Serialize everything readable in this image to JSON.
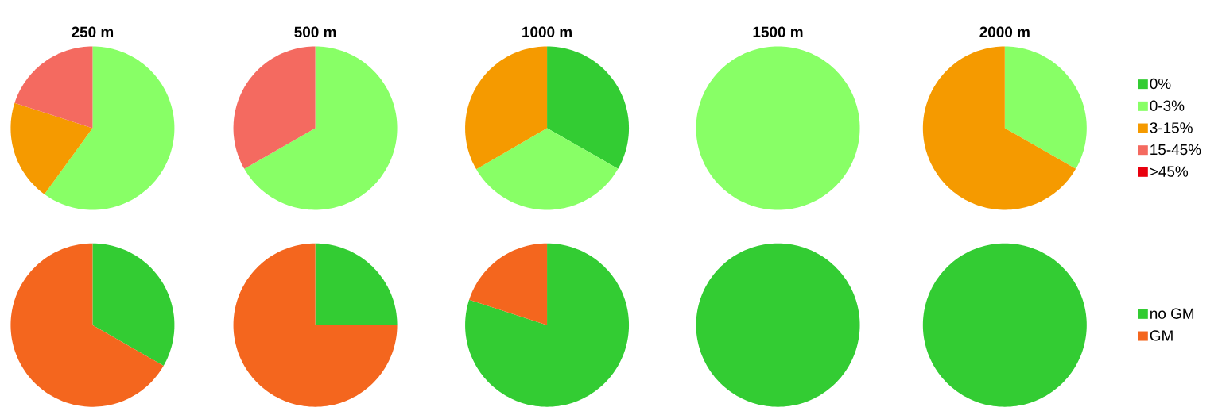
{
  "chart_data": [
    {
      "type": "pie",
      "title": "250 m",
      "values": [
        0,
        60,
        20,
        20,
        0
      ],
      "colors": [
        "#33cc33",
        "#88ff66",
        "#f59a00",
        "#f46a60",
        "#e8000e"
      ]
    },
    {
      "type": "pie",
      "title": "500 m",
      "values": [
        0,
        66.7,
        0,
        33.3,
        0
      ],
      "colors": [
        "#33cc33",
        "#88ff66",
        "#f59a00",
        "#f46a60",
        "#e8000e"
      ]
    },
    {
      "type": "pie",
      "title": "1000 m",
      "values": [
        33.3,
        33.3,
        33.4,
        0,
        0
      ],
      "colors": [
        "#33cc33",
        "#88ff66",
        "#f59a00",
        "#f46a60",
        "#e8000e"
      ]
    },
    {
      "type": "pie",
      "title": "1500 m",
      "values": [
        0,
        100,
        0,
        0,
        0
      ],
      "colors": [
        "#33cc33",
        "#88ff66",
        "#f59a00",
        "#f46a60",
        "#e8000e"
      ]
    },
    {
      "type": "pie",
      "title": "2000 m",
      "categories": [
        "0%",
        "0-3%",
        "3-15%",
        "15-45%",
        ">45%"
      ],
      "values": [
        0,
        33.3,
        66.7,
        0,
        0
      ],
      "colors": [
        "#33cc33",
        "#88ff66",
        "#f59a00",
        "#f46a60",
        "#e8000e"
      ],
      "legend": "right"
    },
    {
      "type": "pie",
      "values": [
        33.3,
        66.7
      ],
      "colors": [
        "#33cc33",
        "#f4661e"
      ]
    },
    {
      "type": "pie",
      "values": [
        25,
        75
      ],
      "colors": [
        "#33cc33",
        "#f4661e"
      ]
    },
    {
      "type": "pie",
      "values": [
        80,
        20
      ],
      "colors": [
        "#33cc33",
        "#f4661e"
      ]
    },
    {
      "type": "pie",
      "values": [
        100,
        0
      ],
      "colors": [
        "#33cc33",
        "#f4661e"
      ]
    },
    {
      "type": "pie",
      "categories": [
        "no GM",
        "GM"
      ],
      "values": [
        100,
        0
      ],
      "colors": [
        "#33cc33",
        "#f4661e"
      ],
      "legend": "right"
    }
  ]
}
